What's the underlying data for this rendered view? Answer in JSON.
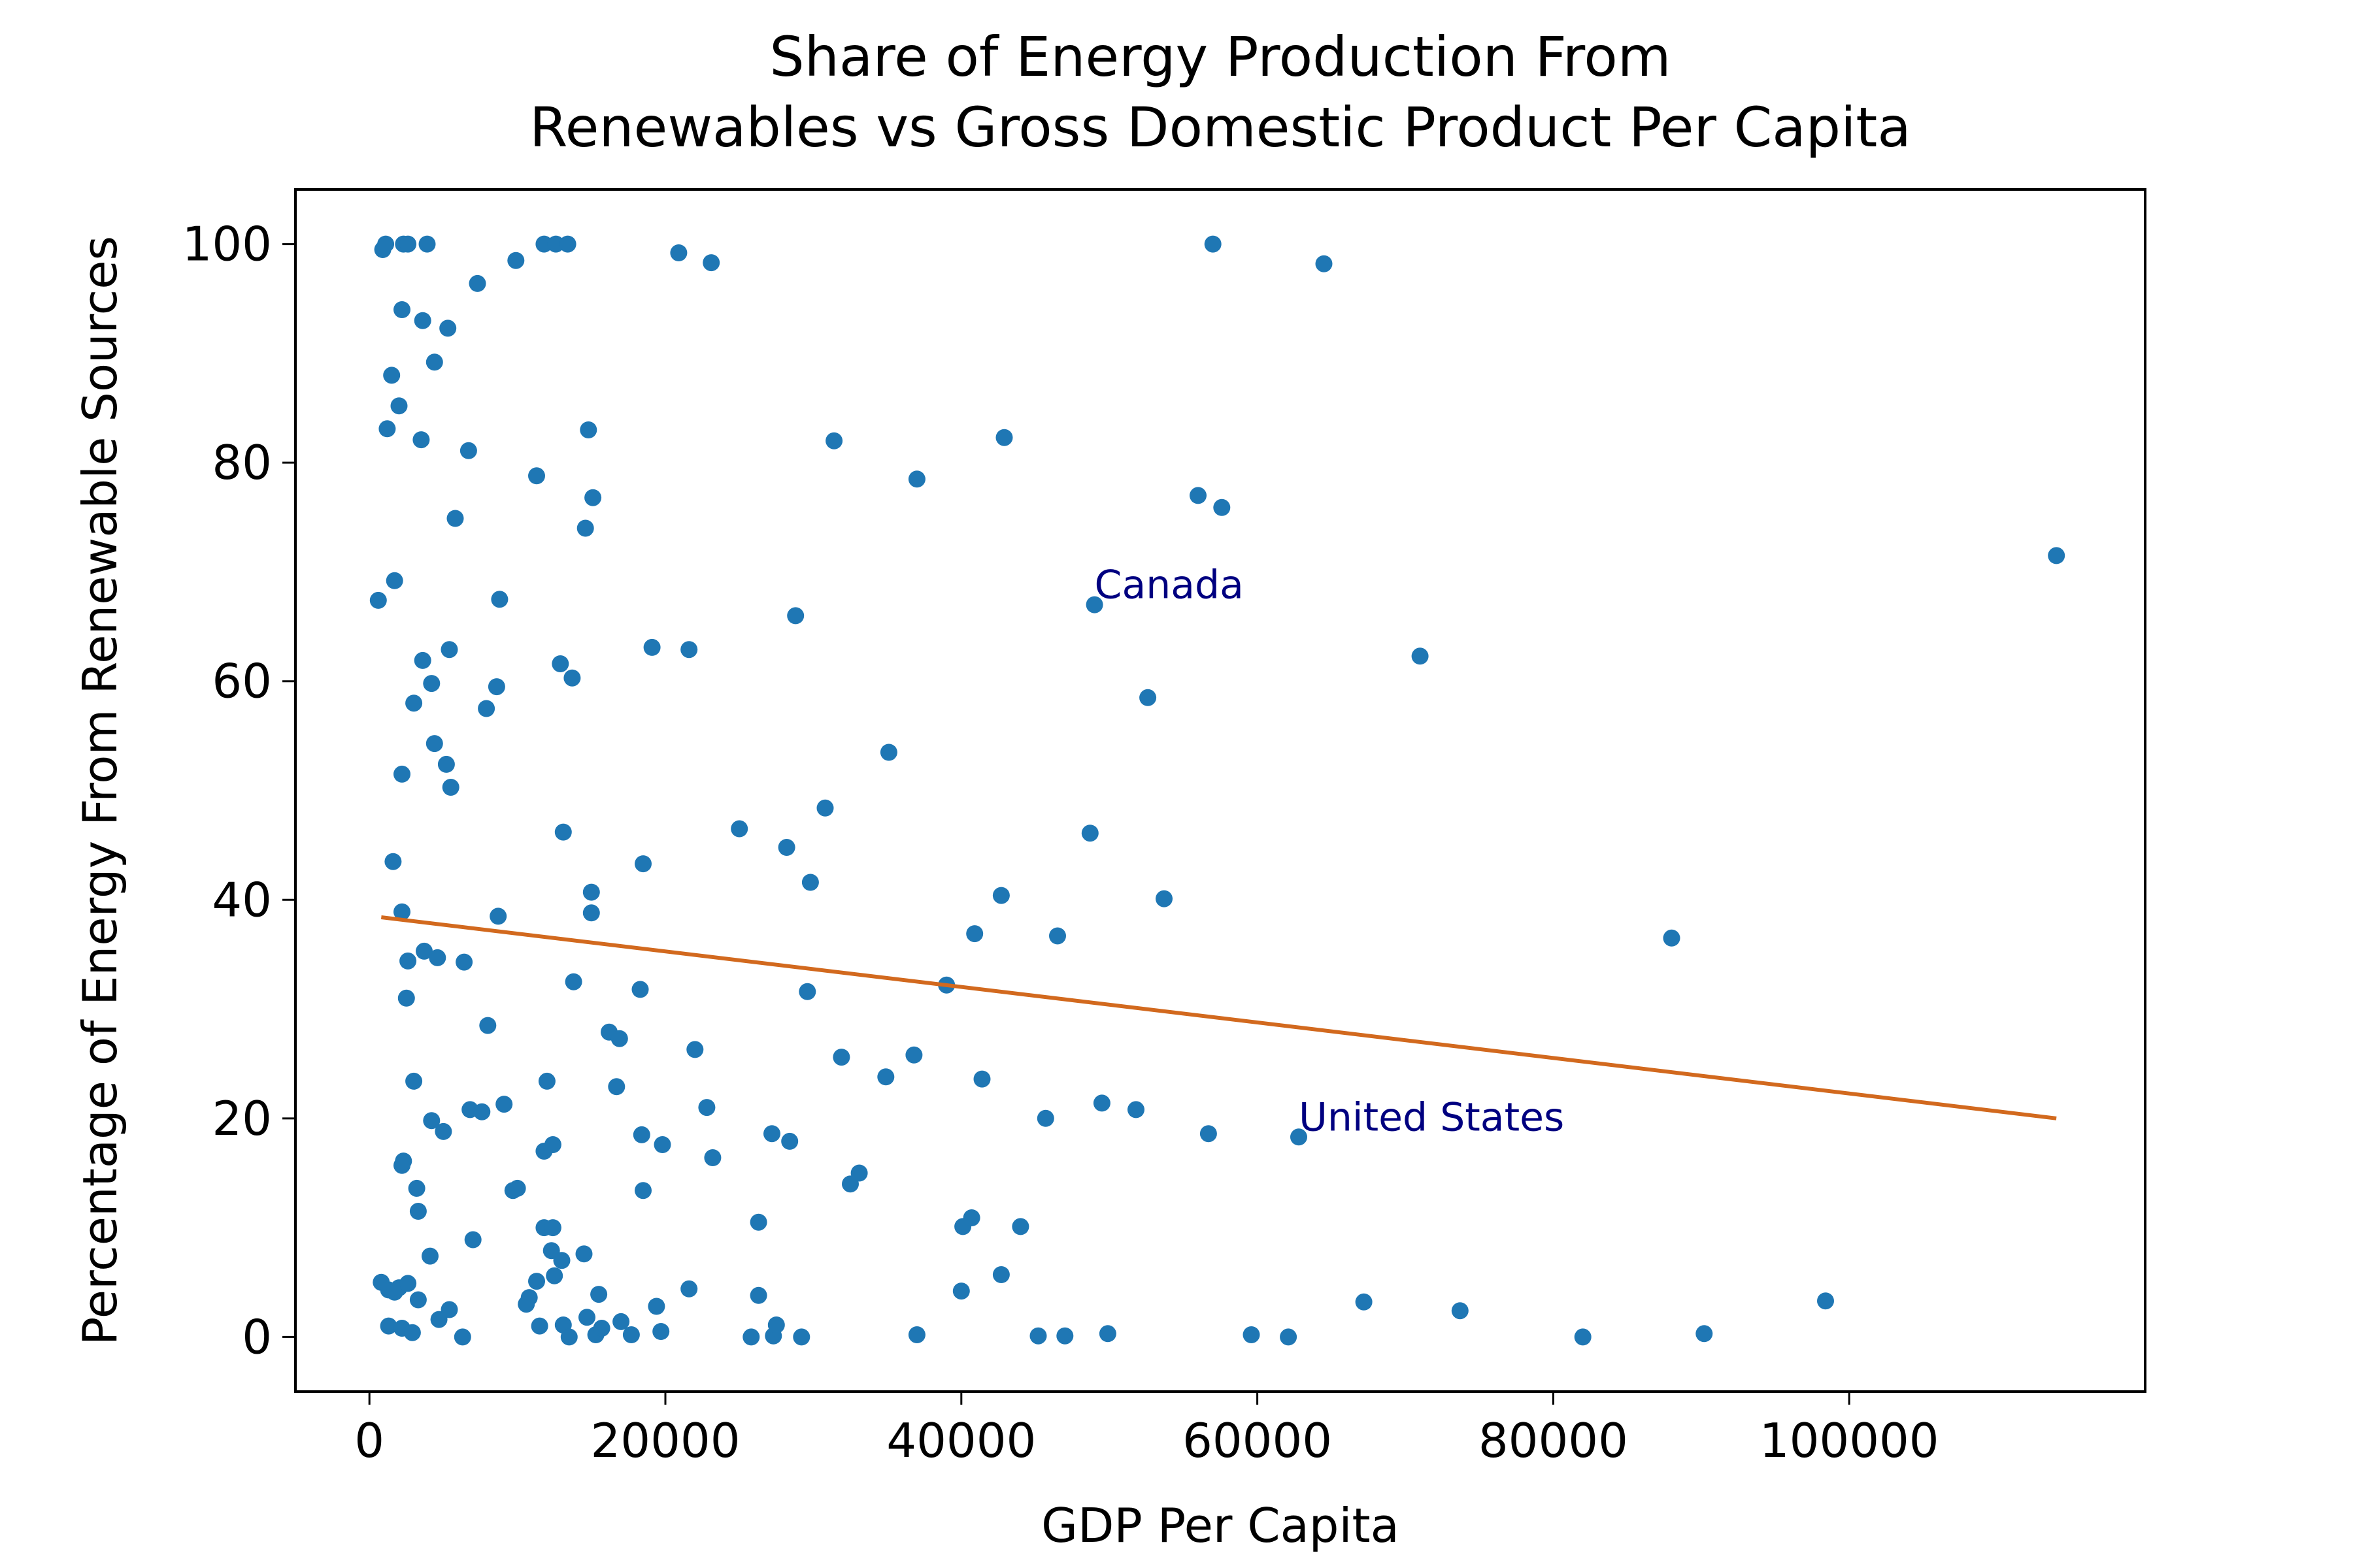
{
  "chart_data": {
    "type": "scatter",
    "title": [
      "Share of Energy Production From",
      "Renewables vs Gross Domestic Product Per Capita"
    ],
    "xlabel": "GDP Per Capita",
    "ylabel": "Percentage of Energy From Renewable Sources",
    "xlim": [
      -5000,
      120000
    ],
    "ylim": [
      -5,
      105
    ],
    "xticks": [
      0,
      20000,
      40000,
      60000,
      80000,
      100000
    ],
    "xtick_labels": [
      "0",
      "20000",
      "40000",
      "60000",
      "80000",
      "100000"
    ],
    "yticks": [
      0,
      20,
      40,
      60,
      80,
      100
    ],
    "ytick_labels": [
      "0",
      "20",
      "40",
      "60",
      "80",
      "100"
    ],
    "grid": false,
    "colors": {
      "points": "#1f77b4",
      "trend": "#d2691e",
      "annotation": "#000080"
    },
    "trendline": {
      "x": [
        800,
        114000
      ],
      "y": [
        38.4,
        20.0
      ]
    },
    "annotations": [
      {
        "text": "Canada",
        "x": 49000,
        "y": 67.0
      },
      {
        "text": "United States",
        "x": 62800,
        "y": 18.3
      }
    ],
    "points": [
      [
        900,
        99.5
      ],
      [
        1100,
        100
      ],
      [
        2300,
        100
      ],
      [
        2600,
        100
      ],
      [
        3900,
        100
      ],
      [
        11800,
        100
      ],
      [
        12600,
        100
      ],
      [
        13400,
        100
      ],
      [
        20900,
        99.2
      ],
      [
        23100,
        98.3
      ],
      [
        9900,
        98.5
      ],
      [
        7300,
        96.4
      ],
      [
        2200,
        94
      ],
      [
        3600,
        93
      ],
      [
        5300,
        92.3
      ],
      [
        4400,
        89.2
      ],
      [
        1500,
        88
      ],
      [
        2000,
        85.2
      ],
      [
        1200,
        83.1
      ],
      [
        3500,
        82.1
      ],
      [
        6700,
        81.1
      ],
      [
        14800,
        83
      ],
      [
        11300,
        78.8
      ],
      [
        15100,
        76.8
      ],
      [
        5800,
        74.9
      ],
      [
        14600,
        74
      ],
      [
        31400,
        82
      ],
      [
        42900,
        82.3
      ],
      [
        37000,
        78.5
      ],
      [
        56000,
        77
      ],
      [
        57600,
        75.9
      ],
      [
        64500,
        98.2
      ],
      [
        57000,
        100
      ],
      [
        600,
        67.4
      ],
      [
        1700,
        69.2
      ],
      [
        8800,
        67.5
      ],
      [
        28800,
        66
      ],
      [
        49000,
        67
      ],
      [
        114000,
        71.5
      ],
      [
        71000,
        62.3
      ],
      [
        19100,
        63.1
      ],
      [
        21600,
        62.9
      ],
      [
        12900,
        61.6
      ],
      [
        13700,
        60.3
      ],
      [
        3600,
        61.9
      ],
      [
        5400,
        62.9
      ],
      [
        4200,
        59.8
      ],
      [
        3000,
        58
      ],
      [
        8600,
        59.5
      ],
      [
        7900,
        57.5
      ],
      [
        4400,
        54.3
      ],
      [
        5200,
        52.4
      ],
      [
        5500,
        50.3
      ],
      [
        2200,
        51.5
      ],
      [
        52600,
        58.5
      ],
      [
        35100,
        53.5
      ],
      [
        30800,
        48.4
      ],
      [
        25000,
        46.5
      ],
      [
        28200,
        44.8
      ],
      [
        13100,
        46.2
      ],
      [
        48700,
        46.1
      ],
      [
        29800,
        41.6
      ],
      [
        18500,
        43.3
      ],
      [
        1600,
        43.5
      ],
      [
        15000,
        40.7
      ],
      [
        42700,
        40.4
      ],
      [
        53700,
        40.1
      ],
      [
        2200,
        38.9
      ],
      [
        8700,
        38.5
      ],
      [
        15000,
        38.8
      ],
      [
        40900,
        36.9
      ],
      [
        46500,
        36.7
      ],
      [
        88000,
        36.5
      ],
      [
        3700,
        35.3
      ],
      [
        2600,
        34.4
      ],
      [
        4600,
        34.7
      ],
      [
        6400,
        34.3
      ],
      [
        13800,
        32.5
      ],
      [
        18300,
        31.8
      ],
      [
        29600,
        31.6
      ],
      [
        39000,
        32.2
      ],
      [
        2500,
        31
      ],
      [
        16200,
        27.9
      ],
      [
        16900,
        27.3
      ],
      [
        8000,
        28.5
      ],
      [
        22000,
        26.3
      ],
      [
        31900,
        25.6
      ],
      [
        36800,
        25.8
      ],
      [
        34900,
        23.8
      ],
      [
        41400,
        23.6
      ],
      [
        3000,
        23.4
      ],
      [
        12000,
        23.4
      ],
      [
        16700,
        22.9
      ],
      [
        22800,
        21
      ],
      [
        49500,
        21.4
      ],
      [
        51800,
        20.8
      ],
      [
        45700,
        20
      ],
      [
        56700,
        18.6
      ],
      [
        62800,
        18.3
      ],
      [
        6800,
        20.8
      ],
      [
        7600,
        20.6
      ],
      [
        9100,
        21.3
      ],
      [
        4200,
        19.8
      ],
      [
        5000,
        18.8
      ],
      [
        18400,
        18.5
      ],
      [
        19800,
        17.6
      ],
      [
        27200,
        18.6
      ],
      [
        28400,
        17.9
      ],
      [
        12400,
        17.6
      ],
      [
        11800,
        17
      ],
      [
        23200,
        16.4
      ],
      [
        2200,
        15.7
      ],
      [
        2300,
        16.1
      ],
      [
        3200,
        13.6
      ],
      [
        10000,
        13.6
      ],
      [
        9700,
        13.4
      ],
      [
        18500,
        13.4
      ],
      [
        33100,
        15
      ],
      [
        32500,
        14
      ],
      [
        3300,
        11.5
      ],
      [
        11800,
        10
      ],
      [
        12400,
        10
      ],
      [
        26300,
        10.5
      ],
      [
        40100,
        10.1
      ],
      [
        40700,
        10.9
      ],
      [
        44000,
        10.1
      ],
      [
        4100,
        7.4
      ],
      [
        7000,
        8.9
      ],
      [
        12300,
        7.9
      ],
      [
        13000,
        7
      ],
      [
        14500,
        7.6
      ],
      [
        12500,
        5.6
      ],
      [
        11300,
        5.1
      ],
      [
        42700,
        5.7
      ],
      [
        800,
        5
      ],
      [
        1300,
        4.3
      ],
      [
        1700,
        4.1
      ],
      [
        2000,
        4.5
      ],
      [
        2600,
        4.9
      ],
      [
        3300,
        3.4
      ],
      [
        10800,
        3.6
      ],
      [
        10600,
        3
      ],
      [
        15500,
        3.9
      ],
      [
        21600,
        4.4
      ],
      [
        26300,
        3.8
      ],
      [
        40000,
        4.2
      ],
      [
        67200,
        3.2
      ],
      [
        73700,
        2.4
      ],
      [
        98400,
        3.3
      ],
      [
        4700,
        1.6
      ],
      [
        5400,
        2.5
      ],
      [
        1300,
        1
      ],
      [
        2200,
        0.8
      ],
      [
        2900,
        0.4
      ],
      [
        6300,
        0
      ],
      [
        11500,
        1
      ],
      [
        13100,
        1.1
      ],
      [
        13500,
        0
      ],
      [
        14700,
        1.8
      ],
      [
        15300,
        0.2
      ],
      [
        15700,
        0.8
      ],
      [
        17000,
        1.4
      ],
      [
        17700,
        0.2
      ],
      [
        19400,
        2.8
      ],
      [
        19700,
        0.5
      ],
      [
        25800,
        0
      ],
      [
        27300,
        0.1
      ],
      [
        27500,
        1.1
      ],
      [
        29200,
        0
      ],
      [
        37000,
        0.2
      ],
      [
        45200,
        0.1
      ],
      [
        47000,
        0.1
      ],
      [
        49900,
        0.3
      ],
      [
        59600,
        0.2
      ],
      [
        62100,
        0
      ],
      [
        82000,
        0
      ],
      [
        90200,
        0.3
      ]
    ]
  }
}
